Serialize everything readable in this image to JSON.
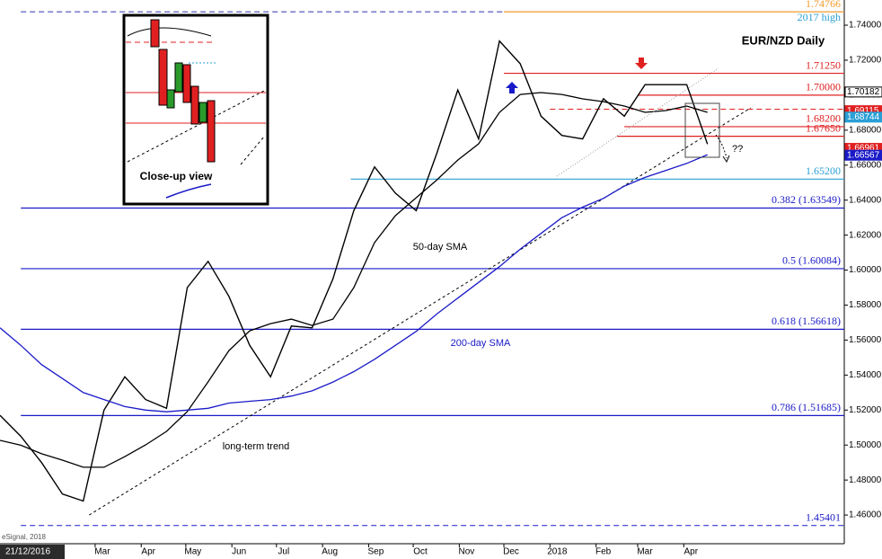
{
  "chart_data": {
    "type": "line",
    "title": "EUR/NZD Daily",
    "start_date_label": "21/12/2016",
    "source": "eSignal, 2018",
    "x": [
      "2016-12-27",
      "2017-01-10",
      "2017-01-24",
      "2017-02-07",
      "2017-02-21",
      "2017-03-07",
      "2017-03-21",
      "2017-04-04",
      "2017-04-18",
      "2017-05-02",
      "2017-05-16",
      "2017-05-30",
      "2017-06-13",
      "2017-06-27",
      "2017-07-11",
      "2017-07-25",
      "2017-08-08",
      "2017-08-22",
      "2017-09-05",
      "2017-09-19",
      "2017-10-03",
      "2017-10-17",
      "2017-10-31",
      "2017-11-14",
      "2017-11-28",
      "2017-12-12",
      "2017-12-26",
      "2018-01-09",
      "2018-01-23",
      "2018-02-06",
      "2018-02-20",
      "2018-03-06",
      "2018-03-20",
      "2018-04-03",
      "2018-04-17"
    ],
    "series": [
      {
        "color": "#000000",
        "values": [
          1.517,
          1.505,
          1.49,
          1.472,
          1.468,
          1.52,
          1.539,
          1.526,
          1.521,
          1.59,
          1.605,
          1.585,
          1.557,
          1.539,
          1.568,
          1.567,
          1.595,
          1.634,
          1.659,
          1.644,
          1.634,
          1.667,
          1.703,
          1.675,
          1.731,
          1.718,
          1.688,
          1.677,
          1.675,
          1.698,
          1.688,
          1.706,
          1.706,
          1.706,
          1.672
        ]
      },
      {
        "name": "50-day SMA",
        "color": "#000000",
        "values": [
          1.5027,
          1.4999,
          1.495,
          1.4914,
          1.4873,
          1.4873,
          1.4934,
          1.5001,
          1.5078,
          1.5191,
          1.5361,
          1.554,
          1.5653,
          1.5694,
          1.572,
          1.5684,
          1.572,
          1.59,
          1.6157,
          1.6311,
          1.6414,
          1.6516,
          1.6629,
          1.6722,
          1.6902,
          1.7004,
          1.7015,
          1.7004,
          1.6979,
          1.6963,
          1.6938,
          1.6902,
          1.6912,
          1.6938,
          1.6902
        ]
      },
      {
        "name": "200-day SMA",
        "color": "#1a1ac8",
        "values": [
          1.567,
          1.557,
          1.546,
          1.538,
          1.53,
          1.526,
          1.522,
          1.52,
          1.519,
          1.52,
          1.521,
          1.524,
          1.525,
          1.526,
          1.528,
          1.531,
          1.536,
          1.542,
          1.549,
          1.557,
          1.565,
          1.575,
          1.584,
          1.593,
          1.602,
          1.612,
          1.621,
          1.63,
          1.636,
          1.641,
          1.648,
          1.653,
          1.657,
          1.661,
          1.666
        ]
      }
    ],
    "xlim": [
      "2016-12-27",
      "2018-07-18"
    ],
    "xticks": [
      {
        "value": "2017-03-01",
        "label": "Mar"
      },
      {
        "value": "2017-04-01",
        "label": "Apr"
      },
      {
        "value": "2017-05-01",
        "label": "May"
      },
      {
        "value": "2017-06-01",
        "label": "Jun"
      },
      {
        "value": "2017-07-01",
        "label": "Jul"
      },
      {
        "value": "2017-08-01",
        "label": "Aug"
      },
      {
        "value": "2017-09-01",
        "label": "Sep"
      },
      {
        "value": "2017-10-01",
        "label": "Oct"
      },
      {
        "value": "2017-11-01",
        "label": "Nov"
      },
      {
        "value": "2017-12-01",
        "label": "Dec"
      },
      {
        "value": "2018-01-01",
        "label": "2018"
      },
      {
        "value": "2018-02-01",
        "label": "Feb"
      },
      {
        "value": "2018-03-01",
        "label": "Mar"
      },
      {
        "value": "2018-04-01",
        "label": "Apr"
      }
    ],
    "ylim": [
      1.4436,
      1.7544
    ],
    "yticks": [
      {
        "value": 1.46,
        "label": "1.46000"
      },
      {
        "value": 1.48,
        "label": "1.48000"
      },
      {
        "value": 1.5,
        "label": "1.50000"
      },
      {
        "value": 1.52,
        "label": "1.52000"
      },
      {
        "value": 1.54,
        "label": "1.54000"
      },
      {
        "value": 1.56,
        "label": "1.56000"
      },
      {
        "value": 1.58,
        "label": "1.58000"
      },
      {
        "value": 1.6,
        "label": "1.60000"
      },
      {
        "value": 1.62,
        "label": "1.62000"
      },
      {
        "value": 1.64,
        "label": "1.64000"
      },
      {
        "value": 1.66,
        "label": "1.66000"
      },
      {
        "value": 1.68,
        "label": "1.68000"
      },
      {
        "value": 1.7,
        "label": "1.70000"
      },
      {
        "value": 1.72,
        "label": "1.72000"
      },
      {
        "value": 1.74,
        "label": "1.74000"
      }
    ],
    "levels": [
      {
        "value": 1.74766,
        "label": "1.74766",
        "color": "#f39a2c",
        "start": "2017-12-01",
        "lead_color": "#3030b0",
        "lead_start": "2017-01-10",
        "note": "2017 high",
        "note_color": "#2a9fd6"
      },
      {
        "value": 1.7125,
        "label": "1.71250",
        "color": "#e02020",
        "start": "2017-12-01"
      },
      {
        "value": 1.7,
        "label": "1.70000",
        "color": "#e02020",
        "start": "2018-03-01"
      },
      {
        "value": 1.692,
        "label": "",
        "color": "#e02020",
        "start": "2018-01-01",
        "dashed": true
      },
      {
        "value": 1.682,
        "label": "1.68200",
        "color": "#e02020",
        "start": "2018-02-20"
      },
      {
        "value": 1.6765,
        "label": "1.67650",
        "color": "#e02020",
        "start": "2018-02-15"
      },
      {
        "value": 1.652,
        "label": "1.65200",
        "color": "#2a9fd6",
        "start": "2017-08-20"
      },
      {
        "value": 1.63549,
        "label": "0.382 (1.63549)",
        "color": "#1a1ac8",
        "start": "2017-01-10"
      },
      {
        "value": 1.60084,
        "label": "0.5 (1.60084)",
        "color": "#1a1ac8",
        "start": "2017-01-10"
      },
      {
        "value": 1.56618,
        "label": "0.618 (1.56618)",
        "color": "#1a1ac8",
        "start": "2017-01-10"
      },
      {
        "value": 1.51685,
        "label": "0.786 (1.51685)",
        "color": "#1a1ac8",
        "start": "2017-01-10"
      },
      {
        "value": 1.45401,
        "label": "1.45401",
        "color": "#1a1ac8",
        "start": "2017-01-10",
        "dashed": true
      }
    ],
    "last_values": [
      {
        "value": 1.70182,
        "label": "1.70182",
        "color": "#ffffff",
        "text_color": "#000000"
      },
      {
        "value": 1.69115,
        "label": "1.69115",
        "color": "#e02020",
        "text_color": "#ffffff"
      },
      {
        "value": 1.68744,
        "label": "1.68744",
        "color": "#2a9fd6",
        "text_color": "#ffffff"
      },
      {
        "value": 1.66961,
        "label": "1.66961",
        "color": "#e02020",
        "text_color": "#ffffff"
      },
      {
        "value": 1.66567,
        "label": "1.66567",
        "color": "#1a1ac8",
        "text_color": "#ffffff"
      }
    ],
    "trendline": {
      "label": "long-term trend",
      "x": [
        "2017-02-25",
        "2018-05-16"
      ],
      "values": [
        1.46,
        1.6927
      ]
    },
    "question": "??",
    "inset": {
      "caption": "Close-up view"
    }
  }
}
